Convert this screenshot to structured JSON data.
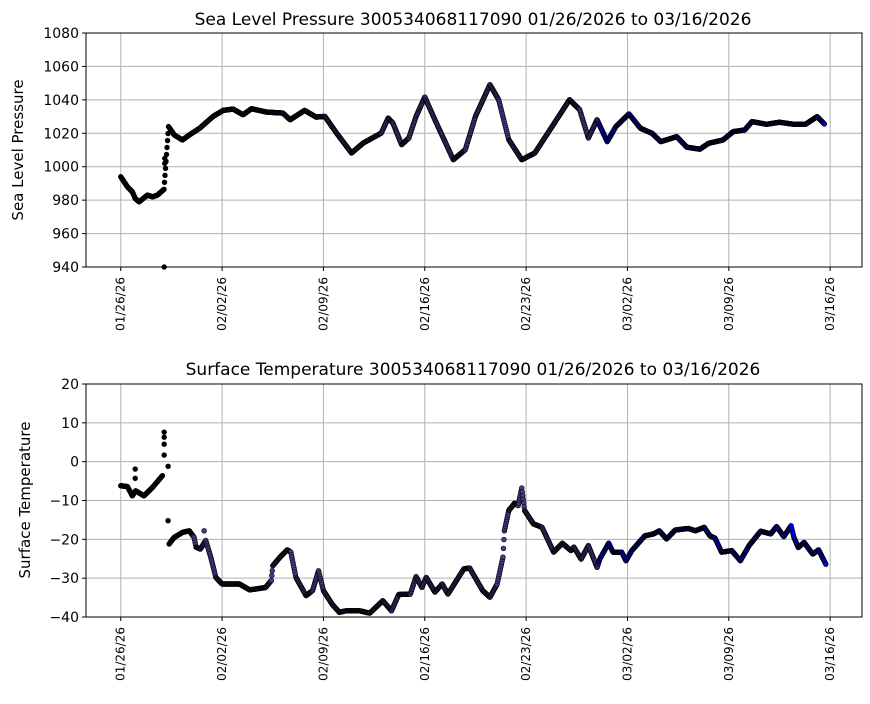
{
  "chart_data": [
    {
      "type": "scatter",
      "title": "Sea Level Pressure 300534068117090  01/26/2026 to 03/16/2026",
      "xlabel": "",
      "ylabel": "Sea Level Pressure",
      "ylim": [
        940,
        1080
      ],
      "yticks": [
        940,
        960,
        980,
        1000,
        1020,
        1040,
        1060,
        1080
      ],
      "xlim_days": [
        -2.4,
        51.2
      ],
      "xticks": [
        {
          "day": 0,
          "label": "01/26/26"
        },
        {
          "day": 7,
          "label": "02/02/26"
        },
        {
          "day": 14,
          "label": "02/09/26"
        },
        {
          "day": 21,
          "label": "02/16/26"
        },
        {
          "day": 28,
          "label": "02/23/26"
        },
        {
          "day": 35,
          "label": "03/02/26"
        },
        {
          "day": 42,
          "label": "03/09/26"
        },
        {
          "day": 49,
          "label": "03/16/26"
        }
      ],
      "grid": true,
      "color_segments": [
        {
          "until_day": 5.0,
          "color": "#000000"
        },
        {
          "until_day": 33.0,
          "color": "#483d8b"
        },
        {
          "until_day": 99,
          "color": "#0000ff"
        }
      ],
      "gaps_after_day": [
        3.0
      ],
      "series": [
        [
          0,
          994
        ],
        [
          0.46,
          988
        ],
        [
          0.8,
          985
        ],
        [
          1.0,
          981
        ],
        [
          1.27,
          979
        ],
        [
          1.84,
          983
        ],
        [
          2.2,
          982
        ],
        [
          2.53,
          983
        ],
        [
          2.99,
          986.5
        ],
        [
          3.3,
          1024
        ],
        [
          3.7,
          1019
        ],
        [
          4.26,
          1016
        ],
        [
          4.77,
          1019.2
        ],
        [
          5.46,
          1023.1
        ],
        [
          6.38,
          1030.1
        ],
        [
          7.07,
          1033.7
        ],
        [
          7.76,
          1034.5
        ],
        [
          8.45,
          1031.1
        ],
        [
          9.03,
          1034.7
        ],
        [
          10.07,
          1032.7
        ],
        [
          11.2,
          1032.1
        ],
        [
          11.7,
          1028.1
        ],
        [
          12.7,
          1033.7
        ],
        [
          13.5,
          1029.7
        ],
        [
          14.1,
          1030.1
        ],
        [
          14.9,
          1020.2
        ],
        [
          15.94,
          1008.2
        ],
        [
          16.75,
          1014.2
        ],
        [
          17.8,
          1019.2
        ],
        [
          18.0,
          1020.2
        ],
        [
          18.47,
          1029.1
        ],
        [
          18.8,
          1026.1
        ],
        [
          19.4,
          1013.2
        ],
        [
          19.9,
          1017.2
        ],
        [
          20.4,
          1030.1
        ],
        [
          21.0,
          1041.7
        ],
        [
          21.7,
          1028.1
        ],
        [
          22.97,
          1004.2
        ],
        [
          23.8,
          1010.2
        ],
        [
          24.5,
          1030.1
        ],
        [
          25.5,
          1049.1
        ],
        [
          26.1,
          1040.1
        ],
        [
          26.8,
          1016.2
        ],
        [
          27.7,
          1004.2
        ],
        [
          28.6,
          1008.2
        ],
        [
          29.8,
          1024.1
        ],
        [
          31.0,
          1040.1
        ],
        [
          31.7,
          1034.1
        ],
        [
          32.3,
          1017.2
        ],
        [
          32.9,
          1028.1
        ],
        [
          33.6,
          1015
        ],
        [
          34.2,
          1024
        ],
        [
          35.1,
          1031.6
        ],
        [
          35.9,
          1023
        ],
        [
          36.7,
          1020
        ],
        [
          37.3,
          1015
        ],
        [
          38.4,
          1018
        ],
        [
          39.1,
          1011.7
        ],
        [
          40.0,
          1010.5
        ],
        [
          40.6,
          1014
        ],
        [
          41.6,
          1016
        ],
        [
          42.3,
          1021
        ],
        [
          43.1,
          1022
        ],
        [
          43.6,
          1027
        ],
        [
          44.6,
          1025.4
        ],
        [
          45.5,
          1026.6
        ],
        [
          46.5,
          1025.4
        ],
        [
          47.3,
          1025.4
        ],
        [
          48.1,
          1030
        ],
        [
          48.6,
          1025.6
        ]
      ],
      "outliers": [
        [
          3.04,
          1005
        ],
        [
          3.04,
          1002
        ],
        [
          3.0,
          940
        ]
      ]
    },
    {
      "type": "scatter",
      "title": "Surface Temperature 300534068117090  01/26/2026 to 03/16/2026",
      "xlabel": "",
      "ylabel": "Surface Temperature",
      "ylim": [
        -40,
        20
      ],
      "yticks": [
        -40,
        -30,
        -20,
        -10,
        0,
        10,
        20
      ],
      "xlim_days": [
        -2.4,
        51.2
      ],
      "xticks": [
        {
          "day": 0,
          "label": "01/26/26"
        },
        {
          "day": 7,
          "label": "02/02/26"
        },
        {
          "day": 14,
          "label": "02/09/26"
        },
        {
          "day": 21,
          "label": "02/16/26"
        },
        {
          "day": 28,
          "label": "02/23/26"
        },
        {
          "day": 35,
          "label": "03/02/26"
        },
        {
          "day": 42,
          "label": "03/09/26"
        },
        {
          "day": 49,
          "label": "03/16/26"
        }
      ],
      "grid": true,
      "color_segments": [
        {
          "until_day": 5.0,
          "color": "#000000"
        },
        {
          "until_day": 33.0,
          "color": "#483d8b"
        },
        {
          "until_day": 99,
          "color": "#0000ff"
        }
      ],
      "gaps_after_day": [
        2.88
      ],
      "series": [
        [
          0,
          -6.2
        ],
        [
          0.46,
          -6.4
        ],
        [
          0.8,
          -8.8
        ],
        [
          1.03,
          -7.5
        ],
        [
          1.6,
          -8.8
        ],
        [
          2.2,
          -6.6
        ],
        [
          2.88,
          -3.6
        ],
        [
          3.34,
          -21.2
        ],
        [
          3.69,
          -19.5
        ],
        [
          4.27,
          -18.2
        ],
        [
          4.73,
          -17.8
        ],
        [
          5.07,
          -19.5
        ],
        [
          5.2,
          -22
        ],
        [
          5.5,
          -22.5
        ],
        [
          5.87,
          -20.3
        ],
        [
          6.22,
          -24.6
        ],
        [
          6.57,
          -29.8
        ],
        [
          7.0,
          -31.5
        ],
        [
          8.2,
          -31.5
        ],
        [
          8.9,
          -33
        ],
        [
          9.3,
          -32.8
        ],
        [
          10,
          -32.4
        ],
        [
          10.4,
          -30.6
        ],
        [
          10.5,
          -26.8
        ],
        [
          11,
          -24.6
        ],
        [
          11.5,
          -22.7
        ],
        [
          11.75,
          -23.3
        ],
        [
          12.1,
          -29.8
        ],
        [
          12.8,
          -34.5
        ],
        [
          13.25,
          -33.2
        ],
        [
          13.66,
          -28.1
        ],
        [
          14,
          -33.2
        ],
        [
          14.6,
          -36.7
        ],
        [
          15.1,
          -38.8
        ],
        [
          15.55,
          -38.4
        ],
        [
          16.5,
          -38.4
        ],
        [
          17.2,
          -39
        ],
        [
          18.1,
          -35.8
        ],
        [
          18.7,
          -38.4
        ],
        [
          19.2,
          -34.2
        ],
        [
          20.0,
          -34.1
        ],
        [
          20.4,
          -29.6
        ],
        [
          20.8,
          -32.4
        ],
        [
          21.1,
          -29.8
        ],
        [
          21.7,
          -33.6
        ],
        [
          22.2,
          -31.5
        ],
        [
          22.6,
          -34.1
        ],
        [
          23.7,
          -27.6
        ],
        [
          24.1,
          -27.4
        ],
        [
          25.0,
          -33.2
        ],
        [
          25.5,
          -34.9
        ],
        [
          26.0,
          -31.5
        ],
        [
          26.4,
          -24.6
        ],
        [
          26.5,
          -17.8
        ],
        [
          26.8,
          -12.6
        ],
        [
          27.2,
          -10.7
        ],
        [
          27.45,
          -11.3
        ],
        [
          27.7,
          -6.8
        ],
        [
          27.9,
          -12.6
        ],
        [
          28.5,
          -16
        ],
        [
          29.1,
          -16.9
        ],
        [
          29.9,
          -23.3
        ],
        [
          30.5,
          -21
        ],
        [
          31.1,
          -22.9
        ],
        [
          31.3,
          -22
        ],
        [
          31.8,
          -25.1
        ],
        [
          32.3,
          -21.6
        ],
        [
          32.9,
          -27.2
        ],
        [
          33.1,
          -25
        ],
        [
          33.7,
          -21
        ],
        [
          34.0,
          -23.3
        ],
        [
          34.6,
          -23.3
        ],
        [
          34.9,
          -25.5
        ],
        [
          35.3,
          -22.9
        ],
        [
          36.2,
          -19.1
        ],
        [
          36.8,
          -18.6
        ],
        [
          37.2,
          -17.8
        ],
        [
          37.7,
          -19.9
        ],
        [
          38.3,
          -17.6
        ],
        [
          39.2,
          -17.2
        ],
        [
          39.7,
          -17.8
        ],
        [
          40.3,
          -16.9
        ],
        [
          40.7,
          -19.1
        ],
        [
          41.05,
          -19.7
        ],
        [
          41.5,
          -23.3
        ],
        [
          42.2,
          -22.9
        ],
        [
          42.8,
          -25.5
        ],
        [
          43.4,
          -21.6
        ],
        [
          44.2,
          -17.9
        ],
        [
          44.9,
          -18.6
        ],
        [
          45.3,
          -16.7
        ],
        [
          45.8,
          -19.3
        ],
        [
          46.3,
          -16.5
        ],
        [
          46.5,
          -19.5
        ],
        [
          46.8,
          -22.1
        ],
        [
          47.2,
          -20.8
        ],
        [
          47.8,
          -23.8
        ],
        [
          48.2,
          -22.7
        ],
        [
          48.7,
          -26.4
        ]
      ],
      "outliers": [
        [
          1.0,
          -1.9
        ],
        [
          1.0,
          -4.3
        ],
        [
          3.0,
          7.6
        ],
        [
          3.0,
          6.3
        ],
        [
          3.0,
          4.5
        ],
        [
          3.0,
          1.7
        ],
        [
          3.27,
          -1.2
        ],
        [
          3.27,
          -15.2
        ],
        [
          5.76,
          -17.8
        ]
      ]
    }
  ]
}
